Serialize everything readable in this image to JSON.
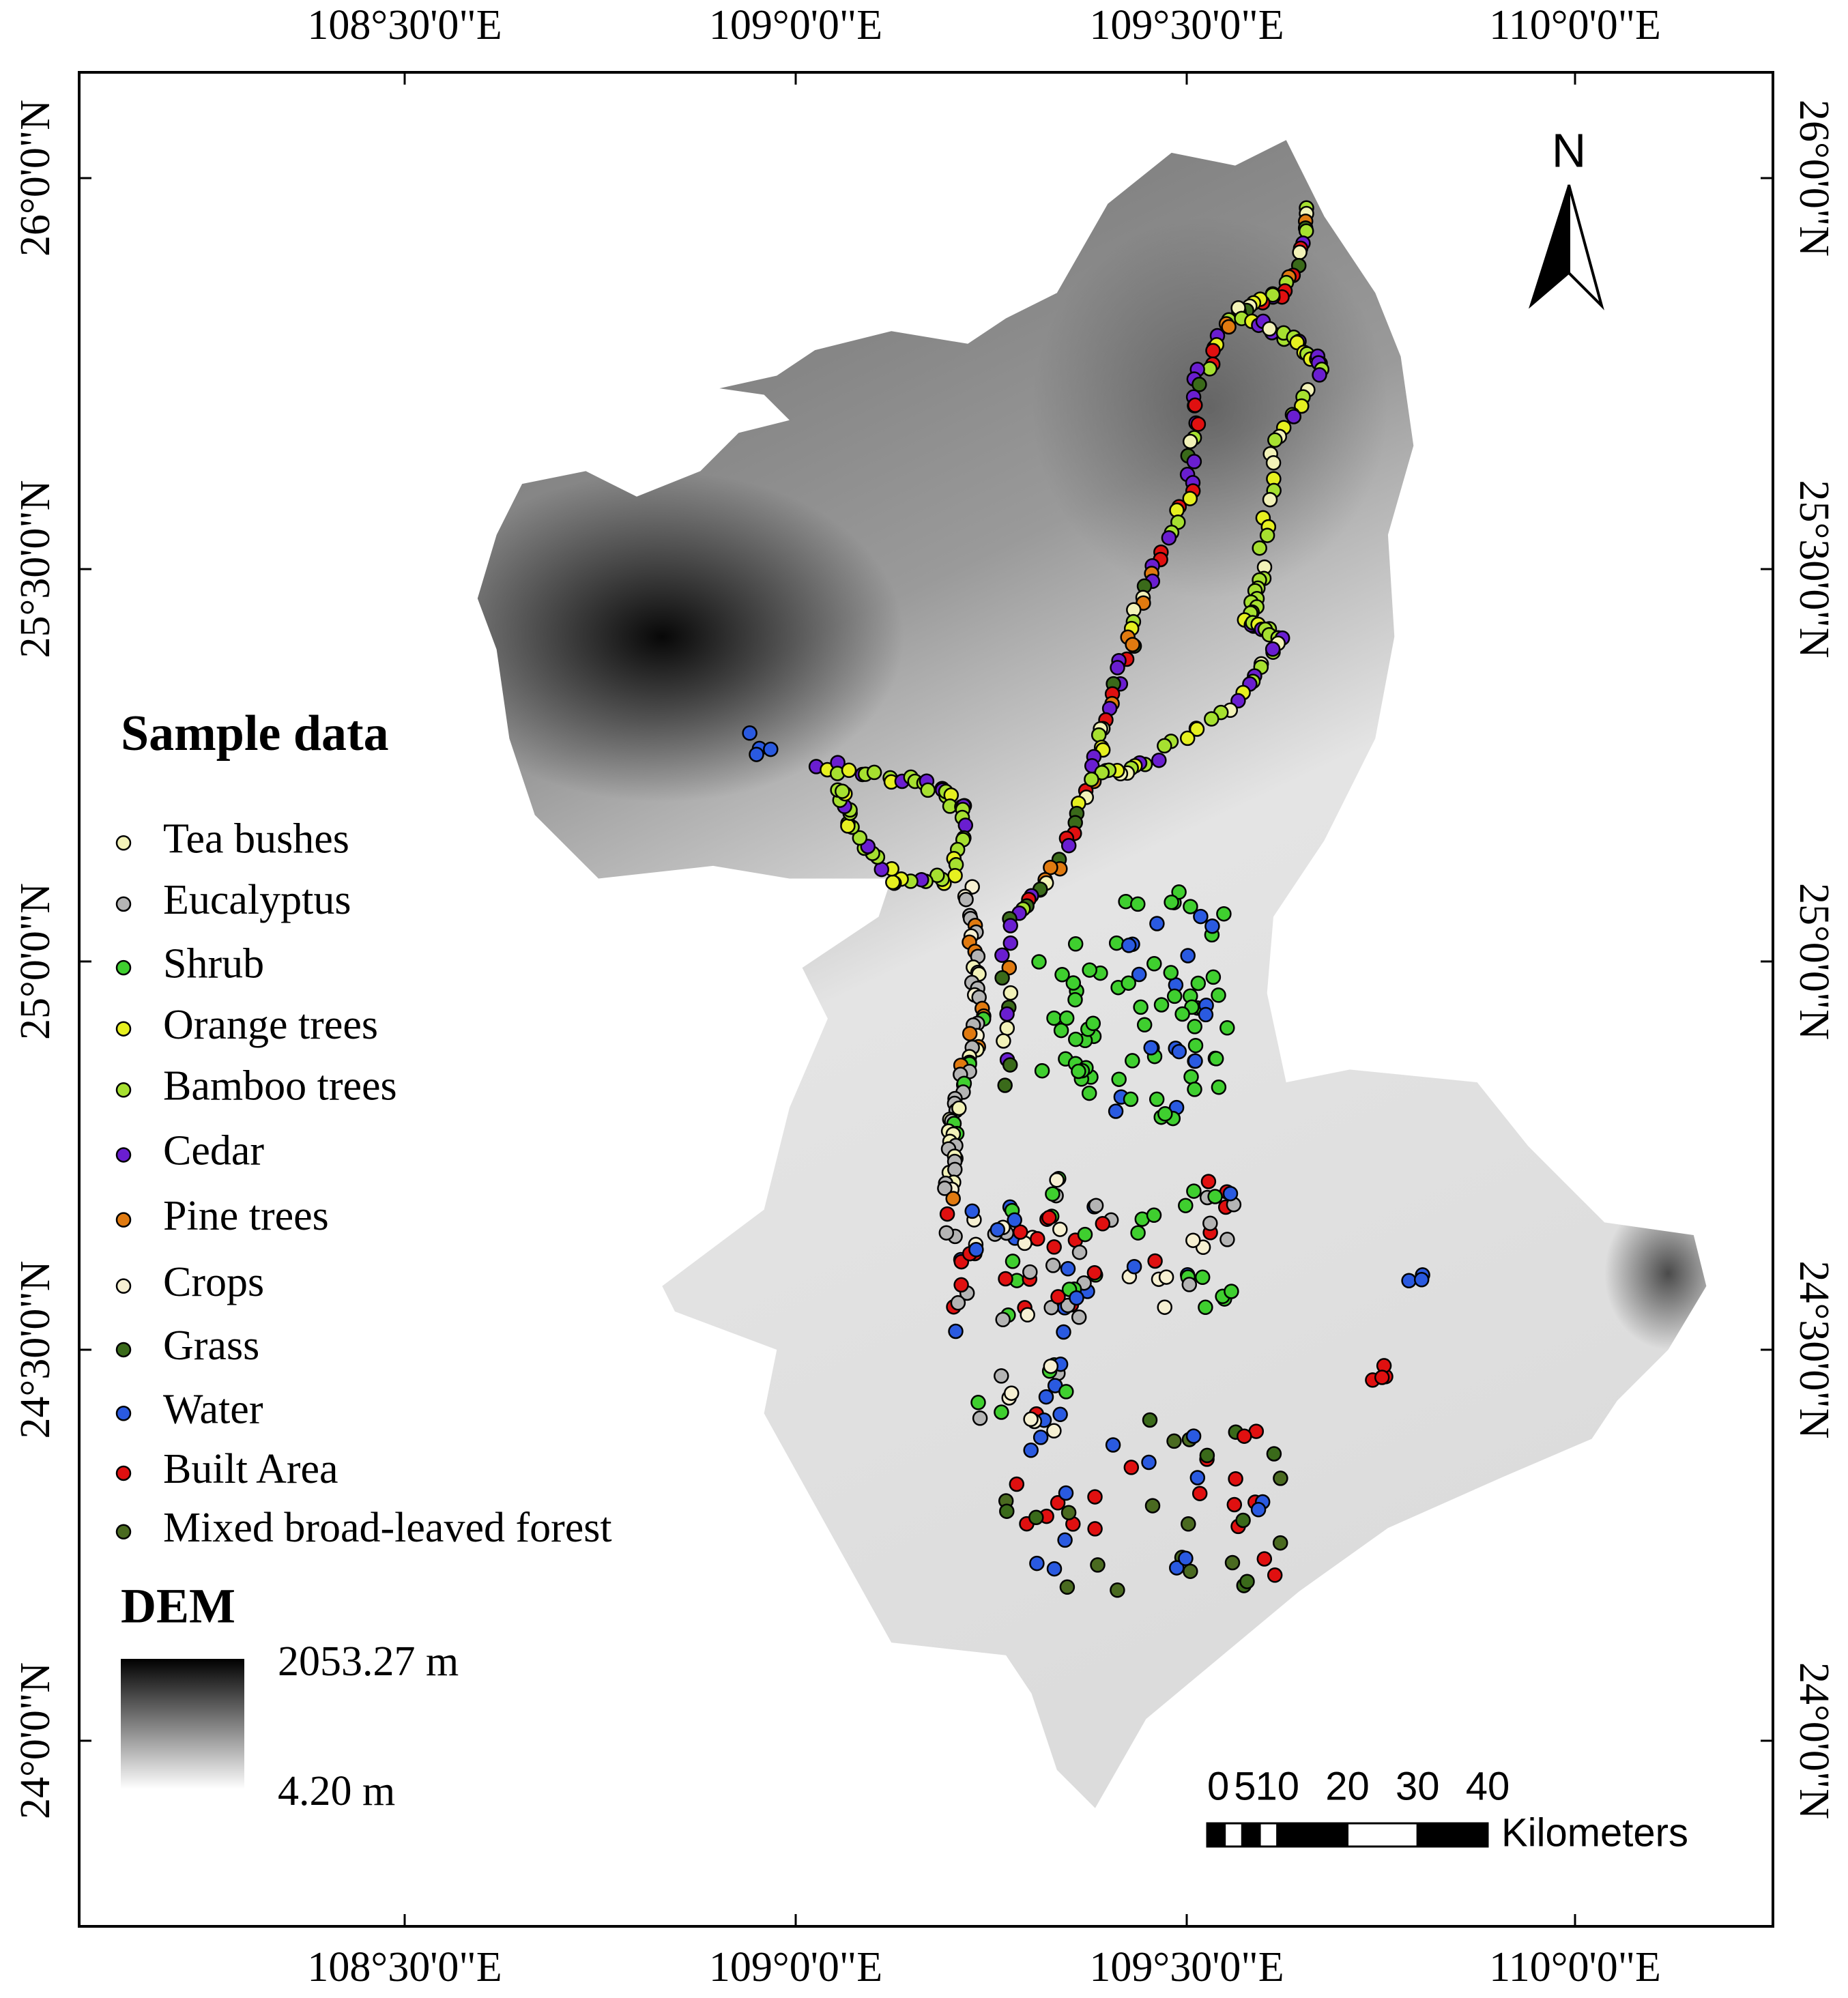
{
  "map": {
    "lon_labels": [
      "108°30'0\"E",
      "109°0'0\"E",
      "109°30'0\"E",
      "110°0'0\"E"
    ],
    "lat_labels": [
      "26°0'0\"N",
      "25°30'0\"N",
      "25°0'0\"N",
      "24°30'0\"N",
      "24°0'0\"N"
    ],
    "north": "N",
    "legend": {
      "title": "Sample data",
      "items": [
        {
          "label": "Tea bushes",
          "color": "#f2f2b8"
        },
        {
          "label": "Eucalyptus",
          "color": "#b4b4b4"
        },
        {
          "label": "Shrub",
          "color": "#3fcf2f"
        },
        {
          "label": "Orange trees",
          "color": "#e6f020"
        },
        {
          "label": "Bamboo trees",
          "color": "#a6e030"
        },
        {
          "label": "Cedar",
          "color": "#6a1ed0"
        },
        {
          "label": "Pine trees",
          "color": "#e07a10"
        },
        {
          "label": "Crops",
          "color": "#f6f0d2"
        },
        {
          "label": "Grass",
          "color": "#3a6a1a"
        },
        {
          "label": "Water",
          "color": "#2a5ae0"
        },
        {
          "label": "Built Area",
          "color": "#e01010"
        },
        {
          "label": "Mixed broad-leaved forest",
          "color": "#4a6a20"
        }
      ]
    },
    "dem": {
      "title": "DEM",
      "max_label": "2053.27 m",
      "min_label": "4.20 m"
    },
    "scale_bar": {
      "labels": [
        "0",
        "5",
        "10",
        "20",
        "30",
        "40"
      ],
      "unit": "Kilometers"
    }
  }
}
